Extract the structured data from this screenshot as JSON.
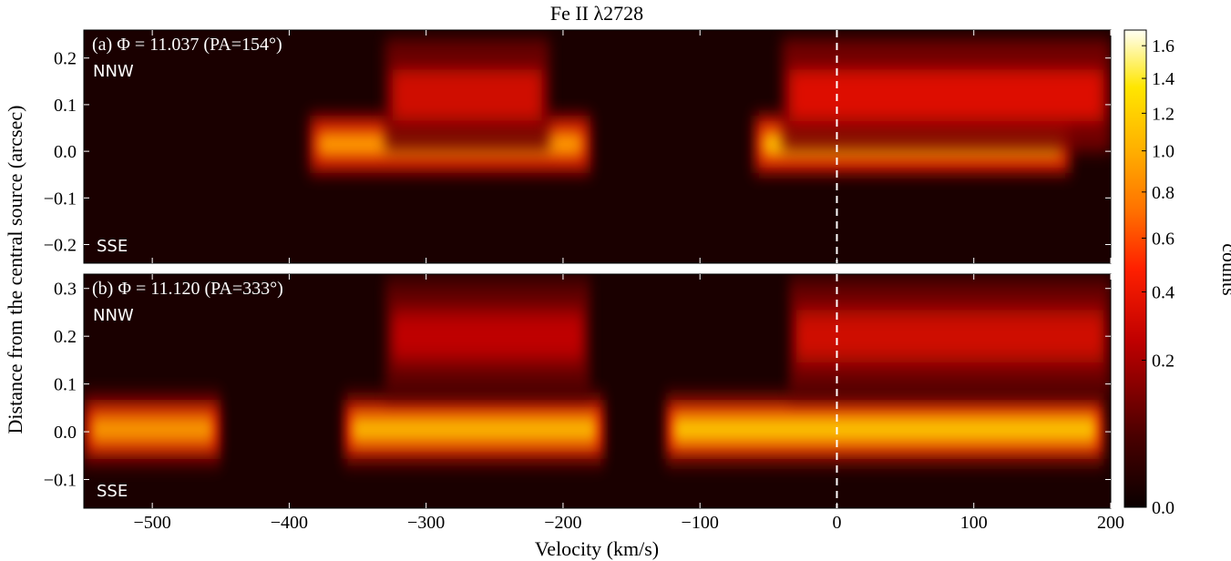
{
  "chart_data": {
    "type": "heatmap",
    "title": "Fe II λ2728",
    "xlabel": "Velocity (km/s)",
    "ylabel": "Distance from the central source (arcsec)",
    "xlim": [
      -550,
      200
    ],
    "x_ticks": [
      -500,
      -400,
      -300,
      -200,
      -100,
      0,
      100,
      200
    ],
    "x_tick_labels": [
      "−500",
      "−400",
      "−300",
      "−200",
      "−100",
      "0",
      "100",
      "200"
    ],
    "vline_x": 0,
    "colormap": "hot",
    "colorbar": {
      "label": "counts",
      "ticks": [
        0.0,
        0.2,
        0.4,
        0.6,
        0.8,
        1.0,
        1.2,
        1.4,
        1.6
      ],
      "tick_labels": [
        "0.0",
        "0.2",
        "0.4",
        "0.6",
        "0.8",
        "1.0",
        "1.2",
        "1.4",
        "1.6"
      ],
      "range": [
        0.0,
        1.7
      ],
      "scale": "nonlinear"
    },
    "panels": [
      {
        "label": "(a) Φ = 11.037 (PA=154°)",
        "top_label": "NNW",
        "bottom_label": "SSE",
        "ylim": [
          -0.24,
          0.26
        ],
        "y_ticks": [
          -0.2,
          -0.1,
          0.0,
          0.1,
          0.2
        ],
        "y_tick_labels": [
          "−0.2",
          "−0.1",
          "0.0",
          "0.1",
          "0.2"
        ],
        "emission": [
          {
            "v0": -385,
            "v1": -180,
            "y": 0.015,
            "peak": 0.9
          },
          {
            "v0": -60,
            "v1": 170,
            "y": 0.015,
            "peak": 1.1
          },
          {
            "v0": -330,
            "v1": -210,
            "y": 0.12,
            "peak": 0.3
          },
          {
            "v0": -40,
            "v1": 200,
            "y": 0.12,
            "peak": 0.35
          }
        ]
      },
      {
        "label": "(b) Φ = 11.120 (PA=333°)",
        "top_label": "NNW",
        "bottom_label": "SSE",
        "ylim": [
          -0.16,
          0.33
        ],
        "y_ticks": [
          -0.1,
          0.0,
          0.1,
          0.2,
          0.3
        ],
        "y_tick_labels": [
          "−0.1",
          "0.0",
          "0.1",
          "0.2",
          "0.3"
        ],
        "emission": [
          {
            "v0": -550,
            "v1": -450,
            "y": 0.005,
            "peak": 1.0
          },
          {
            "v0": -360,
            "v1": -170,
            "y": 0.005,
            "peak": 1.2
          },
          {
            "v0": -125,
            "v1": 195,
            "y": 0.005,
            "peak": 1.3
          },
          {
            "v0": -330,
            "v1": -180,
            "y": 0.2,
            "peak": 0.25
          },
          {
            "v0": -35,
            "v1": 200,
            "y": 0.2,
            "peak": 0.3
          }
        ]
      }
    ]
  }
}
